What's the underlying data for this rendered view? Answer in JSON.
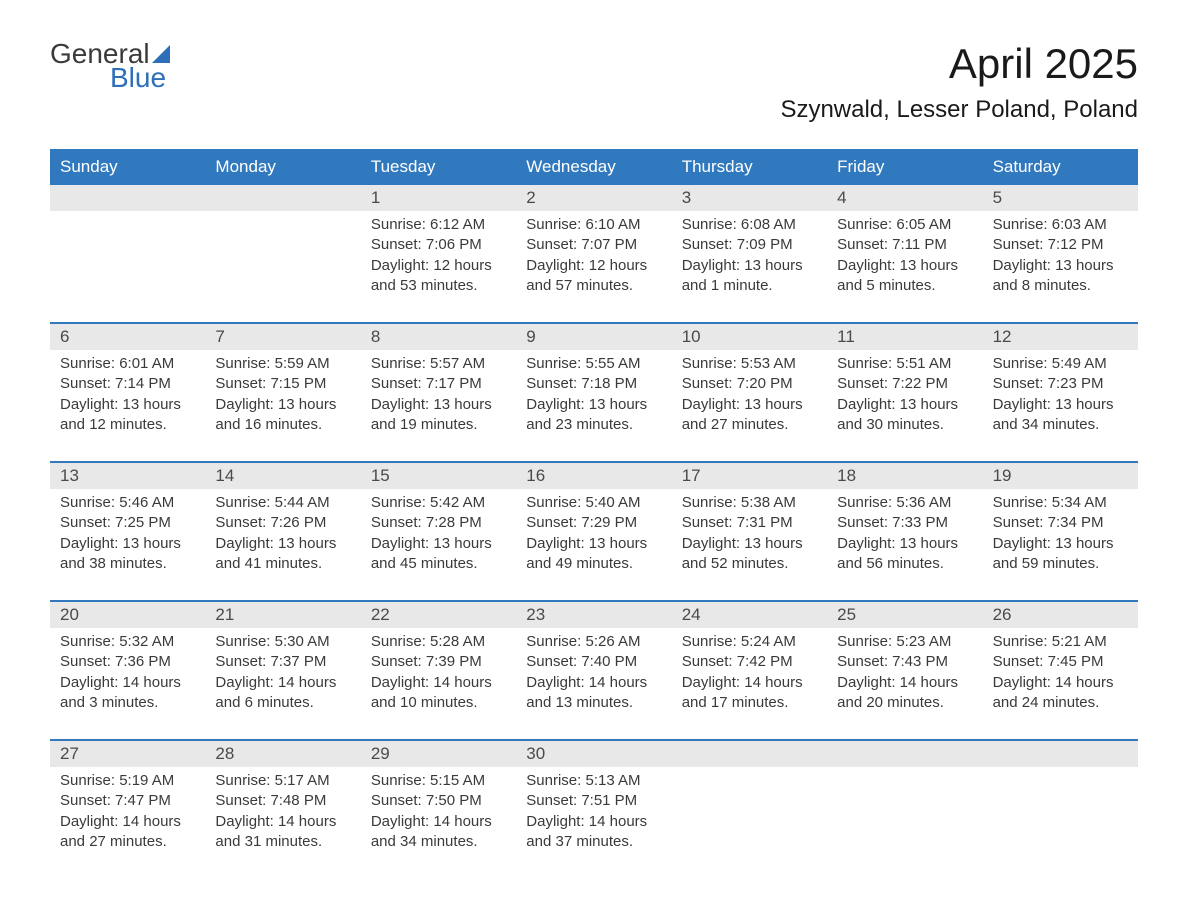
{
  "logo": {
    "text_general": "General",
    "text_blue": "Blue"
  },
  "title": "April 2025",
  "location": "Szynwald, Lesser Poland, Poland",
  "colors": {
    "header_bg": "#3179bf",
    "header_text": "#ffffff",
    "day_number_bg": "#e8e8e8",
    "border": "#3179bf",
    "body_text": "#3a3a3a",
    "logo_blue": "#2d6fb8"
  },
  "day_headers": [
    "Sunday",
    "Monday",
    "Tuesday",
    "Wednesday",
    "Thursday",
    "Friday",
    "Saturday"
  ],
  "weeks": [
    [
      {
        "num": "",
        "sunrise": "",
        "sunset": "",
        "daylight1": "",
        "daylight2": ""
      },
      {
        "num": "",
        "sunrise": "",
        "sunset": "",
        "daylight1": "",
        "daylight2": ""
      },
      {
        "num": "1",
        "sunrise": "Sunrise: 6:12 AM",
        "sunset": "Sunset: 7:06 PM",
        "daylight1": "Daylight: 12 hours",
        "daylight2": "and 53 minutes."
      },
      {
        "num": "2",
        "sunrise": "Sunrise: 6:10 AM",
        "sunset": "Sunset: 7:07 PM",
        "daylight1": "Daylight: 12 hours",
        "daylight2": "and 57 minutes."
      },
      {
        "num": "3",
        "sunrise": "Sunrise: 6:08 AM",
        "sunset": "Sunset: 7:09 PM",
        "daylight1": "Daylight: 13 hours",
        "daylight2": "and 1 minute."
      },
      {
        "num": "4",
        "sunrise": "Sunrise: 6:05 AM",
        "sunset": "Sunset: 7:11 PM",
        "daylight1": "Daylight: 13 hours",
        "daylight2": "and 5 minutes."
      },
      {
        "num": "5",
        "sunrise": "Sunrise: 6:03 AM",
        "sunset": "Sunset: 7:12 PM",
        "daylight1": "Daylight: 13 hours",
        "daylight2": "and 8 minutes."
      }
    ],
    [
      {
        "num": "6",
        "sunrise": "Sunrise: 6:01 AM",
        "sunset": "Sunset: 7:14 PM",
        "daylight1": "Daylight: 13 hours",
        "daylight2": "and 12 minutes."
      },
      {
        "num": "7",
        "sunrise": "Sunrise: 5:59 AM",
        "sunset": "Sunset: 7:15 PM",
        "daylight1": "Daylight: 13 hours",
        "daylight2": "and 16 minutes."
      },
      {
        "num": "8",
        "sunrise": "Sunrise: 5:57 AM",
        "sunset": "Sunset: 7:17 PM",
        "daylight1": "Daylight: 13 hours",
        "daylight2": "and 19 minutes."
      },
      {
        "num": "9",
        "sunrise": "Sunrise: 5:55 AM",
        "sunset": "Sunset: 7:18 PM",
        "daylight1": "Daylight: 13 hours",
        "daylight2": "and 23 minutes."
      },
      {
        "num": "10",
        "sunrise": "Sunrise: 5:53 AM",
        "sunset": "Sunset: 7:20 PM",
        "daylight1": "Daylight: 13 hours",
        "daylight2": "and 27 minutes."
      },
      {
        "num": "11",
        "sunrise": "Sunrise: 5:51 AM",
        "sunset": "Sunset: 7:22 PM",
        "daylight1": "Daylight: 13 hours",
        "daylight2": "and 30 minutes."
      },
      {
        "num": "12",
        "sunrise": "Sunrise: 5:49 AM",
        "sunset": "Sunset: 7:23 PM",
        "daylight1": "Daylight: 13 hours",
        "daylight2": "and 34 minutes."
      }
    ],
    [
      {
        "num": "13",
        "sunrise": "Sunrise: 5:46 AM",
        "sunset": "Sunset: 7:25 PM",
        "daylight1": "Daylight: 13 hours",
        "daylight2": "and 38 minutes."
      },
      {
        "num": "14",
        "sunrise": "Sunrise: 5:44 AM",
        "sunset": "Sunset: 7:26 PM",
        "daylight1": "Daylight: 13 hours",
        "daylight2": "and 41 minutes."
      },
      {
        "num": "15",
        "sunrise": "Sunrise: 5:42 AM",
        "sunset": "Sunset: 7:28 PM",
        "daylight1": "Daylight: 13 hours",
        "daylight2": "and 45 minutes."
      },
      {
        "num": "16",
        "sunrise": "Sunrise: 5:40 AM",
        "sunset": "Sunset: 7:29 PM",
        "daylight1": "Daylight: 13 hours",
        "daylight2": "and 49 minutes."
      },
      {
        "num": "17",
        "sunrise": "Sunrise: 5:38 AM",
        "sunset": "Sunset: 7:31 PM",
        "daylight1": "Daylight: 13 hours",
        "daylight2": "and 52 minutes."
      },
      {
        "num": "18",
        "sunrise": "Sunrise: 5:36 AM",
        "sunset": "Sunset: 7:33 PM",
        "daylight1": "Daylight: 13 hours",
        "daylight2": "and 56 minutes."
      },
      {
        "num": "19",
        "sunrise": "Sunrise: 5:34 AM",
        "sunset": "Sunset: 7:34 PM",
        "daylight1": "Daylight: 13 hours",
        "daylight2": "and 59 minutes."
      }
    ],
    [
      {
        "num": "20",
        "sunrise": "Sunrise: 5:32 AM",
        "sunset": "Sunset: 7:36 PM",
        "daylight1": "Daylight: 14 hours",
        "daylight2": "and 3 minutes."
      },
      {
        "num": "21",
        "sunrise": "Sunrise: 5:30 AM",
        "sunset": "Sunset: 7:37 PM",
        "daylight1": "Daylight: 14 hours",
        "daylight2": "and 6 minutes."
      },
      {
        "num": "22",
        "sunrise": "Sunrise: 5:28 AM",
        "sunset": "Sunset: 7:39 PM",
        "daylight1": "Daylight: 14 hours",
        "daylight2": "and 10 minutes."
      },
      {
        "num": "23",
        "sunrise": "Sunrise: 5:26 AM",
        "sunset": "Sunset: 7:40 PM",
        "daylight1": "Daylight: 14 hours",
        "daylight2": "and 13 minutes."
      },
      {
        "num": "24",
        "sunrise": "Sunrise: 5:24 AM",
        "sunset": "Sunset: 7:42 PM",
        "daylight1": "Daylight: 14 hours",
        "daylight2": "and 17 minutes."
      },
      {
        "num": "25",
        "sunrise": "Sunrise: 5:23 AM",
        "sunset": "Sunset: 7:43 PM",
        "daylight1": "Daylight: 14 hours",
        "daylight2": "and 20 minutes."
      },
      {
        "num": "26",
        "sunrise": "Sunrise: 5:21 AM",
        "sunset": "Sunset: 7:45 PM",
        "daylight1": "Daylight: 14 hours",
        "daylight2": "and 24 minutes."
      }
    ],
    [
      {
        "num": "27",
        "sunrise": "Sunrise: 5:19 AM",
        "sunset": "Sunset: 7:47 PM",
        "daylight1": "Daylight: 14 hours",
        "daylight2": "and 27 minutes."
      },
      {
        "num": "28",
        "sunrise": "Sunrise: 5:17 AM",
        "sunset": "Sunset: 7:48 PM",
        "daylight1": "Daylight: 14 hours",
        "daylight2": "and 31 minutes."
      },
      {
        "num": "29",
        "sunrise": "Sunrise: 5:15 AM",
        "sunset": "Sunset: 7:50 PM",
        "daylight1": "Daylight: 14 hours",
        "daylight2": "and 34 minutes."
      },
      {
        "num": "30",
        "sunrise": "Sunrise: 5:13 AM",
        "sunset": "Sunset: 7:51 PM",
        "daylight1": "Daylight: 14 hours",
        "daylight2": "and 37 minutes."
      },
      {
        "num": "",
        "sunrise": "",
        "sunset": "",
        "daylight1": "",
        "daylight2": ""
      },
      {
        "num": "",
        "sunrise": "",
        "sunset": "",
        "daylight1": "",
        "daylight2": ""
      },
      {
        "num": "",
        "sunrise": "",
        "sunset": "",
        "daylight1": "",
        "daylight2": ""
      }
    ]
  ]
}
